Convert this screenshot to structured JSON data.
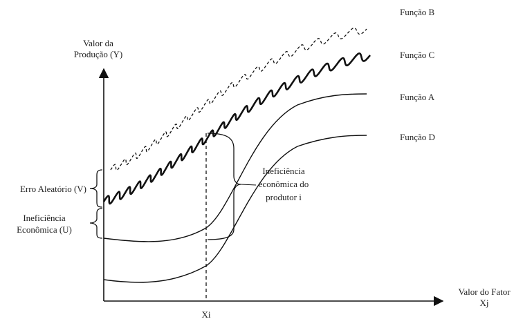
{
  "axes": {
    "y_label_line1": "Valor da",
    "y_label_line2": "Produção (Y)",
    "x_label_line1": "Valor do Fator",
    "x_label_line2": "Xj",
    "x_tick": "Xi"
  },
  "curves": {
    "b": "Função B",
    "c": "Função C",
    "a": "Função A",
    "d": "Função D"
  },
  "annotations": {
    "random_error": "Erro Aleatório (V)",
    "econ_inefficiency_line1": "Ineficiência",
    "econ_inefficiency_line2": "Econômica (U)",
    "producer_line1": "Ineficiência",
    "producer_line2": "econômica do",
    "producer_line3": "produtor i"
  },
  "colors": {
    "ink": "#111111",
    "text": "#222222"
  }
}
